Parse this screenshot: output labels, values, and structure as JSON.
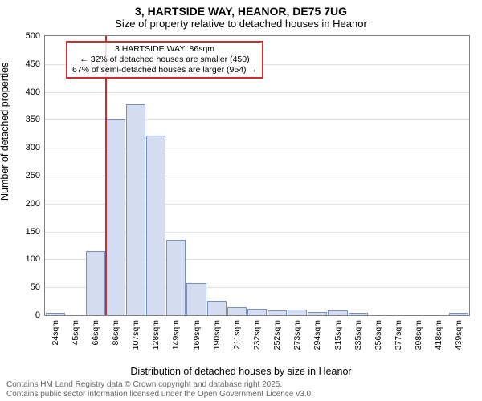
{
  "title": "3, HARTSIDE WAY, HEANOR, DE75 7UG",
  "subtitle": "Size of property relative to detached houses in Heanor",
  "chart": {
    "type": "histogram",
    "ylabel": "Number of detached properties",
    "xlabel": "Distribution of detached houses by size in Heanor",
    "ylim": [
      0,
      500
    ],
    "ytick_step": 50,
    "yticks": [
      0,
      50,
      100,
      150,
      200,
      250,
      300,
      350,
      400,
      450,
      500
    ],
    "xticks": [
      "24sqm",
      "45sqm",
      "66sqm",
      "86sqm",
      "107sqm",
      "128sqm",
      "149sqm",
      "169sqm",
      "190sqm",
      "211sqm",
      "232sqm",
      "252sqm",
      "273sqm",
      "294sqm",
      "315sqm",
      "335sqm",
      "356sqm",
      "377sqm",
      "398sqm",
      "418sqm",
      "439sqm"
    ],
    "values": [
      5,
      0,
      115,
      350,
      378,
      322,
      135,
      58,
      26,
      14,
      12,
      8,
      10,
      6,
      9,
      5,
      0,
      0,
      0,
      0,
      5
    ],
    "bar_fill": "#d3dcf0",
    "bar_border": "#788fc4",
    "background_color": "#ffffff",
    "grid_color": "#e0e0e0",
    "font_family": "Arial",
    "label_fontsize": 12.5,
    "tick_fontsize": 11,
    "marker_line": {
      "value_sqm": 86,
      "bin_index": 3,
      "color": "#c83030",
      "width": 2
    },
    "annotation": {
      "lines": [
        "3 HARTSIDE WAY: 86sqm",
        "← 32% of detached houses are smaller (450)",
        "67% of semi-detached houses are larger (954) →"
      ],
      "border_color": "#c83030",
      "fontsize": 10.5
    }
  },
  "footer": {
    "line1": "Contains HM Land Registry data © Crown copyright and database right 2025.",
    "line2": "Contains public sector information licensed under the Open Government Licence v3.0."
  }
}
